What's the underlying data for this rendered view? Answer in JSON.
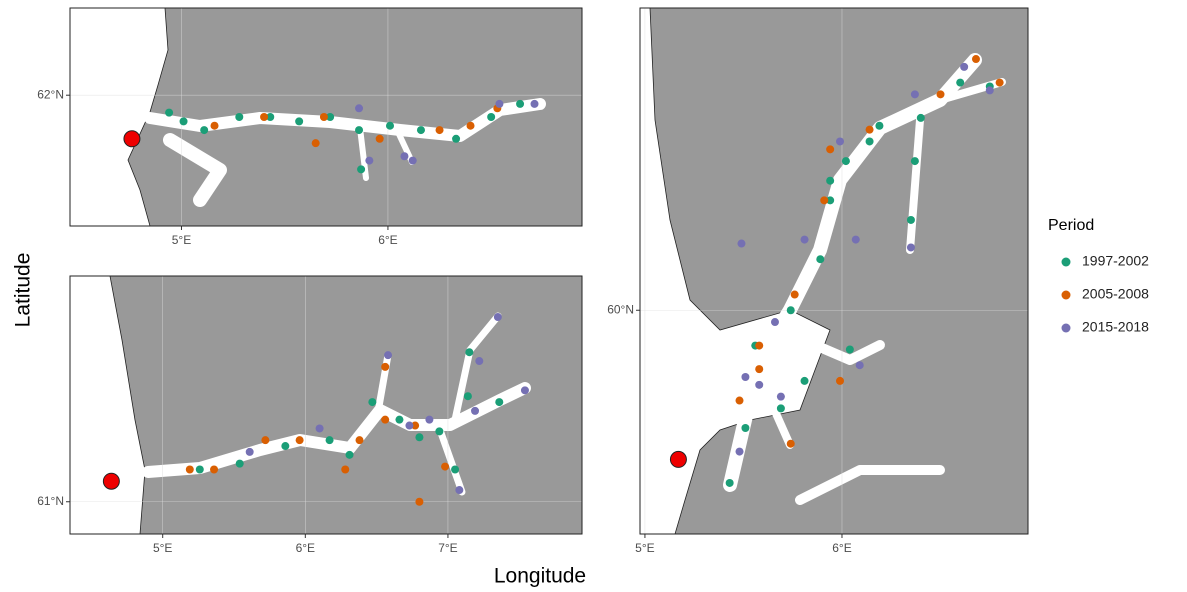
{
  "xlabel": "Longitude",
  "ylabel": "Latitude",
  "legend": {
    "title": "Period",
    "position": "right"
  },
  "chart_data": [
    {
      "type": "scatter",
      "xlim": [
        4.46,
        6.94
      ],
      "ylim": [
        61.7,
        62.2
      ],
      "xticks": [
        {
          "value": 5,
          "label": "5°E"
        },
        {
          "value": 6,
          "label": "6°E"
        }
      ],
      "yticks": [
        {
          "value": 62,
          "label": "62°N"
        }
      ],
      "site": {
        "x": 4.76,
        "y": 61.9,
        "color": "#ee0000"
      },
      "series": [
        {
          "name": "1997-2002",
          "color": "#1b9e77",
          "x": [
            4.94,
            5.01,
            5.11,
            5.28,
            5.43,
            5.57,
            5.72,
            5.86,
            6.01,
            6.16,
            6.33,
            6.5,
            6.64,
            5.87
          ],
          "y": [
            61.96,
            61.94,
            61.92,
            61.95,
            61.95,
            61.94,
            61.95,
            61.92,
            61.93,
            61.92,
            61.9,
            61.95,
            61.98,
            61.83
          ]
        },
        {
          "name": "2005-2008",
          "color": "#d95f02",
          "x": [
            5.16,
            5.4,
            5.65,
            5.69,
            5.96,
            6.25,
            6.4,
            6.53
          ],
          "y": [
            61.93,
            61.95,
            61.89,
            61.95,
            61.9,
            61.92,
            61.93,
            61.97
          ]
        },
        {
          "name": "2015-2018",
          "color": "#7570b3",
          "x": [
            5.86,
            5.91,
            6.08,
            6.54,
            6.71,
            6.12
          ],
          "y": [
            61.97,
            61.85,
            61.86,
            61.98,
            61.98,
            61.85
          ]
        }
      ]
    },
    {
      "type": "scatter",
      "xlim": [
        4.35,
        7.94
      ],
      "ylim": [
        60.89,
        61.77
      ],
      "xticks": [
        {
          "value": 5,
          "label": "5°E"
        },
        {
          "value": 6,
          "label": "6°E"
        },
        {
          "value": 7,
          "label": "7°E"
        }
      ],
      "yticks": [
        {
          "value": 61,
          "label": "61°N"
        }
      ],
      "site": {
        "x": 4.64,
        "y": 61.07,
        "color": "#ee0000"
      },
      "series": [
        {
          "name": "1997-2002",
          "color": "#1b9e77",
          "x": [
            5.26,
            5.54,
            5.86,
            6.17,
            6.31,
            6.47,
            6.66,
            6.94,
            7.14,
            7.36,
            7.05,
            7.15,
            6.8
          ],
          "y": [
            61.11,
            61.13,
            61.19,
            61.21,
            61.16,
            61.34,
            61.28,
            61.24,
            61.36,
            61.34,
            61.11,
            61.51,
            61.22
          ]
        },
        {
          "name": "2005-2008",
          "color": "#d95f02",
          "x": [
            5.19,
            5.36,
            5.72,
            5.96,
            6.28,
            6.56,
            6.77,
            6.98,
            6.8,
            6.56,
            6.38
          ],
          "y": [
            61.11,
            61.11,
            61.21,
            61.21,
            61.11,
            61.46,
            61.26,
            61.12,
            61.0,
            61.28,
            61.21
          ]
        },
        {
          "name": "2015-2018",
          "color": "#7570b3",
          "x": [
            5.61,
            6.1,
            6.58,
            6.73,
            7.22,
            7.35,
            7.54,
            7.08,
            6.87,
            7.19
          ],
          "y": [
            61.17,
            61.25,
            61.5,
            61.26,
            61.48,
            61.63,
            61.38,
            61.04,
            61.28,
            61.31
          ]
        }
      ]
    },
    {
      "type": "scatter",
      "xlim": [
        4.975,
        6.944
      ],
      "ylim": [
        59.43,
        60.77
      ],
      "xticks": [
        {
          "value": 5,
          "label": "5°E"
        },
        {
          "value": 6,
          "label": "6°E"
        }
      ],
      "yticks": [
        {
          "value": 60,
          "label": "60°N"
        }
      ],
      "site": {
        "x": 5.17,
        "y": 59.62,
        "color": "#ee0000"
      },
      "series": [
        {
          "name": "1997-2002",
          "color": "#1b9e77",
          "x": [
            5.43,
            5.51,
            5.56,
            5.74,
            5.89,
            5.94,
            6.02,
            6.19,
            6.4,
            6.6,
            6.37,
            6.35,
            6.04,
            5.69,
            5.81,
            5.94,
            6.14,
            6.75
          ],
          "y": [
            59.56,
            59.7,
            59.91,
            60.0,
            60.13,
            60.28,
            60.38,
            60.47,
            60.49,
            60.58,
            60.38,
            60.23,
            59.9,
            59.75,
            59.82,
            60.33,
            60.43,
            60.57
          ]
        },
        {
          "name": "2005-2008",
          "color": "#d95f02",
          "x": [
            5.48,
            5.58,
            5.76,
            5.91,
            6.14,
            6.5,
            6.68,
            6.8,
            5.99,
            5.74,
            5.58,
            5.94
          ],
          "y": [
            59.77,
            59.91,
            60.04,
            60.28,
            60.46,
            60.55,
            60.64,
            60.58,
            59.82,
            59.66,
            59.85,
            60.41
          ]
        },
        {
          "name": "2015-2018",
          "color": "#7570b3",
          "x": [
            5.49,
            5.66,
            5.81,
            6.07,
            5.48,
            5.51,
            5.58,
            6.37,
            6.62,
            6.75,
            6.35,
            6.09,
            5.69,
            5.99
          ],
          "y": [
            60.17,
            59.97,
            60.18,
            60.18,
            59.64,
            59.83,
            59.81,
            60.55,
            60.62,
            60.56,
            60.16,
            59.86,
            59.78,
            60.43
          ]
        }
      ]
    }
  ]
}
